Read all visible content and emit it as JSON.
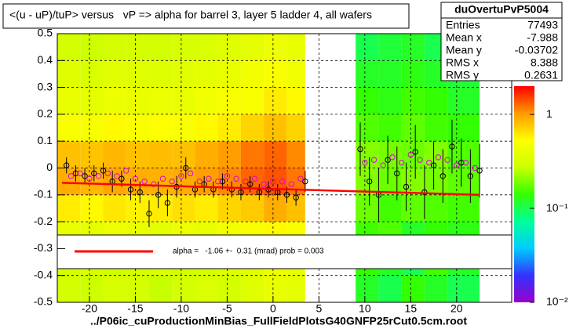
{
  "chart_data": {
    "type": "profile-heatmap",
    "title": "<(u - uP)/tuP> versus   vP => alpha for barrel 3, layer 5 ladder 4, all wafers",
    "x_label": "../P06ic_cuProductionMinBias_FullFieldPlotsG40GNFP25rCut0.5cm.root",
    "xlim": [
      -23.5,
      26
    ],
    "xticks": [
      -20,
      -15,
      -10,
      -5,
      0,
      5,
      10,
      15,
      20
    ],
    "ylim": [
      -0.5,
      0.5
    ],
    "yticks": [
      0.5,
      0.4,
      0.3,
      0.2,
      0.1,
      0,
      -0.1,
      -0.2,
      -0.3,
      -0.4,
      -0.5
    ],
    "grid": true,
    "z_log": true,
    "zlim": [
      0.01,
      2
    ],
    "zticks": [
      {
        "value": 1,
        "label": "1"
      },
      {
        "value": 0.1,
        "label": "10⁻¹"
      },
      {
        "value": 0.01,
        "label": "10⁻²"
      }
    ],
    "palette": [
      "#9900cc",
      "#3333ff",
      "#00ccff",
      "#00ff99",
      "#33ff00",
      "#ccff00",
      "#ffff00",
      "#ff9900",
      "#ff0000"
    ],
    "stats": {
      "name": "duOvertuPvP5004",
      "rows": [
        {
          "label": "Entries",
          "value": 77493
        },
        {
          "label": "Mean x",
          "value": -7.988
        },
        {
          "label": "Mean y",
          "value": -0.03702
        },
        {
          "label": "RMS x",
          "value": 8.388
        },
        {
          "label": "RMS y",
          "value": 0.2631
        }
      ]
    },
    "heatmap": {
      "xbins": [
        -23.5,
        -21,
        -18.5,
        -16,
        -13.5,
        -11,
        -8.5,
        -6,
        -3.5,
        -1,
        1.5,
        3.5,
        9,
        11.5,
        14,
        16.5,
        19,
        22.5
      ],
      "ybins": [
        -0.5,
        -0.4,
        -0.3,
        -0.2,
        -0.1,
        0,
        0.1,
        0.2,
        0.3,
        0.4,
        0.5
      ],
      "z": [
        [
          0.3,
          0.28,
          0.32,
          0.3,
          0.27,
          0.3,
          0.33,
          0.3,
          0.35,
          0.4,
          0.38,
          null,
          0.12,
          0.1,
          0.14,
          0.12,
          0.1
        ],
        [
          0.3,
          0.32,
          0.28,
          0.3,
          0.33,
          0.29,
          0.3,
          0.34,
          0.36,
          0.42,
          0.4,
          null,
          0.14,
          0.12,
          0.1,
          0.15,
          0.12
        ],
        [
          0.4,
          0.38,
          0.42,
          0.4,
          0.37,
          0.41,
          0.4,
          0.45,
          0.5,
          0.55,
          0.5,
          null,
          0.15,
          0.16,
          0.12,
          0.14,
          0.13
        ],
        [
          0.6,
          0.55,
          0.62,
          0.58,
          0.6,
          0.65,
          0.6,
          0.7,
          0.75,
          0.9,
          0.8,
          null,
          0.18,
          0.15,
          0.17,
          0.16,
          0.15
        ],
        [
          0.9,
          0.85,
          0.95,
          0.9,
          0.88,
          0.92,
          1.0,
          1.1,
          1.3,
          1.4,
          1.2,
          null,
          0.2,
          0.18,
          0.2,
          0.19,
          0.17
        ],
        [
          0.8,
          0.78,
          0.85,
          0.8,
          0.82,
          0.8,
          0.9,
          1.0,
          1.2,
          1.3,
          1.1,
          null,
          0.2,
          0.19,
          0.18,
          0.2,
          0.16
        ],
        [
          0.5,
          0.48,
          0.55,
          0.5,
          0.52,
          0.5,
          0.55,
          0.6,
          0.7,
          0.8,
          0.7,
          null,
          0.16,
          0.15,
          0.17,
          0.15,
          0.14
        ],
        [
          0.4,
          0.38,
          0.42,
          0.4,
          0.41,
          0.4,
          0.45,
          0.48,
          0.5,
          0.6,
          0.55,
          null,
          0.14,
          0.13,
          0.15,
          0.14,
          0.12
        ],
        [
          0.35,
          0.33,
          0.36,
          0.35,
          0.34,
          0.36,
          0.38,
          0.4,
          0.45,
          0.5,
          0.45,
          null,
          0.12,
          0.12,
          0.13,
          0.12,
          0.11
        ],
        [
          0.3,
          0.28,
          0.31,
          0.3,
          0.3,
          0.32,
          0.33,
          0.35,
          0.38,
          0.42,
          0.4,
          null,
          0.1,
          0.11,
          0.12,
          0.1,
          0.1
        ]
      ]
    },
    "series": [
      {
        "name": "profile",
        "color": "#000000",
        "x": [
          -22.5,
          -21.5,
          -20.5,
          -19.5,
          -18.5,
          -17.5,
          -16.5,
          -15.5,
          -14.5,
          -13.5,
          -12.5,
          -11.5,
          -10.5,
          -9.5,
          -8.5,
          -7.5,
          -6.5,
          -5.5,
          -4.5,
          -3.5,
          -2.5,
          -1.5,
          -0.5,
          0.5,
          1.5,
          2.5,
          3.5,
          9.5,
          10.5,
          11.5,
          12.5,
          13.5,
          14.5,
          15.5,
          16.5,
          17.5,
          18.5,
          19.5,
          20.5,
          21.5,
          22.5
        ],
        "values": [
          0.01,
          -0.02,
          -0.03,
          -0.02,
          -0.01,
          -0.05,
          -0.04,
          -0.08,
          -0.09,
          -0.17,
          -0.1,
          -0.13,
          -0.07,
          0,
          -0.08,
          -0.06,
          -0.08,
          -0.05,
          -0.08,
          -0.09,
          -0.06,
          -0.09,
          -0.08,
          -0.09,
          -0.1,
          -0.11,
          -0.05,
          0.07,
          -0.05,
          -0.1,
          0.03,
          -0.02,
          -0.07,
          0.06,
          -0.09,
          0.01,
          -0.03,
          0.08,
          0.02,
          -0.03,
          -0.01
        ],
        "errors": [
          0.03,
          0.03,
          0.03,
          0.03,
          0.03,
          0.04,
          0.03,
          0.04,
          0.04,
          0.05,
          0.05,
          0.05,
          0.04,
          0.04,
          0.03,
          0.03,
          0.03,
          0.03,
          0.03,
          0.03,
          0.03,
          0.03,
          0.03,
          0.03,
          0.03,
          0.03,
          0.04,
          0.1,
          0.09,
          0.1,
          0.09,
          0.1,
          0.09,
          0.1,
          0.1,
          0.09,
          0.1,
          0.1,
          0.09,
          0.1,
          0.1
        ]
      },
      {
        "name": "profile-alt",
        "color": "#dd00dd",
        "x": [
          -22,
          -21,
          -20,
          -19,
          -18,
          -17,
          -16,
          -15,
          -14,
          -13,
          -12,
          -11,
          -10,
          -9,
          -8,
          -7,
          -6,
          -5,
          -4,
          -3,
          -2,
          -1,
          0,
          1,
          2,
          3,
          10,
          11,
          12,
          13,
          14,
          15,
          16,
          17,
          18,
          19,
          20,
          21,
          22
        ],
        "values": [
          -0.03,
          -0.02,
          -0.04,
          -0.03,
          -0.02,
          -0.03,
          -0.01,
          -0.04,
          -0.05,
          -0.06,
          -0.04,
          -0.05,
          -0.03,
          -0.02,
          -0.05,
          -0.04,
          -0.05,
          -0.03,
          -0.04,
          -0.05,
          -0.04,
          -0.06,
          -0.05,
          -0.05,
          -0.06,
          -0.04,
          0.02,
          0.03,
          0.01,
          0.04,
          0.02,
          0.05,
          0.03,
          0.02,
          0.04,
          0.03,
          0.01,
          0.02,
          0
        ]
      },
      {
        "name": "fit",
        "color": "#ff0000",
        "x": [
          -23,
          22.5
        ],
        "values": [
          -0.055,
          -0.1
        ]
      }
    ],
    "fit_label": "alpha =   -1.06 +-  0.31 (mrad) prob = 0.003"
  }
}
